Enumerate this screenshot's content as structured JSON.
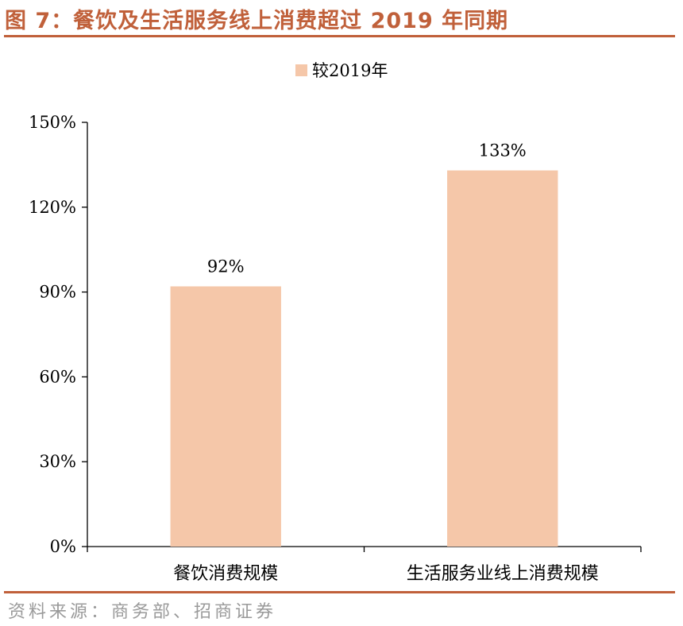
{
  "figure": {
    "title": "图 7：餐饮及生活服务线上消费超过 2019 年同期",
    "source": "资料来源：商务部、招商证券"
  },
  "colors": {
    "accent": "#C0603A",
    "bar": "#F5C7A9",
    "axis": "#000000"
  },
  "chart_data": {
    "type": "bar",
    "categories": [
      "餐饮消费规模",
      "生活服务业线上消费规模"
    ],
    "series": [
      {
        "name": "较2019年",
        "values": [
          92,
          133
        ],
        "data_labels": [
          "92%",
          "133%"
        ]
      }
    ],
    "ylim": [
      0,
      150
    ],
    "yticks": [
      0,
      30,
      60,
      90,
      120,
      150
    ],
    "ytick_labels": [
      "0%",
      "30%",
      "60%",
      "90%",
      "120%",
      "150%"
    ],
    "legend": {
      "position": "top-center"
    },
    "grid": false
  }
}
